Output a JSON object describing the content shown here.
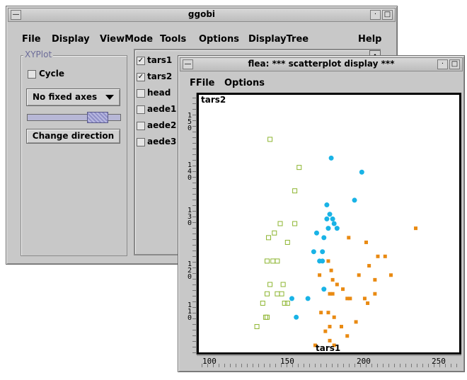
{
  "ggobi": {
    "title": "ggobi",
    "menus": [
      "File",
      "Display",
      "ViewMode",
      "Tools",
      "Options",
      "DisplayTree",
      "Help"
    ],
    "xyplot": {
      "group_label": "XYPlot",
      "cycle_label": "Cycle",
      "axes_select": "No fixed axes",
      "change_direction": "Change direction"
    },
    "variables": [
      {
        "name": "tars1",
        "checked": true
      },
      {
        "name": "tars2",
        "checked": true
      },
      {
        "name": "head",
        "checked": false
      },
      {
        "name": "aede1",
        "checked": false
      },
      {
        "name": "aede2",
        "checked": false
      },
      {
        "name": "aede3",
        "checked": false
      }
    ]
  },
  "scatter": {
    "title": "flea: *** scatterplot display ***",
    "menus": [
      "FFile",
      "Options"
    ],
    "xlabel": "tars1",
    "ylabel": "tars2",
    "ruler_x": [
      "100",
      "150",
      "200",
      "250"
    ],
    "ruler_y": [
      [
        "1",
        "5",
        "0"
      ],
      [
        "1",
        "4",
        "0"
      ],
      [
        "1",
        "3",
        "0"
      ],
      [
        "1",
        "2",
        "0"
      ],
      [
        "1",
        "1",
        "0"
      ]
    ],
    "colors": {
      "green": "#8db530",
      "cyan": "#19b3e6",
      "orange": "#e98a12"
    }
  },
  "chart_data": {
    "type": "scatter",
    "xlabel": "tars1",
    "ylabel": "tars2",
    "xlim": [
      96,
      265
    ],
    "ylim": [
      104,
      156
    ],
    "series": [
      {
        "marker": "open-square",
        "color": "#8db530",
        "points": [
          [
            140,
            148
          ],
          [
            160,
            142
          ],
          [
            157,
            137
          ],
          [
            147,
            130
          ],
          [
            143,
            128
          ],
          [
            157,
            130
          ],
          [
            139,
            127
          ],
          [
            152,
            126
          ],
          [
            138,
            122
          ],
          [
            142,
            122
          ],
          [
            145,
            122
          ],
          [
            140,
            117
          ],
          [
            149,
            117
          ],
          [
            138,
            115
          ],
          [
            145,
            115
          ],
          [
            148,
            115
          ],
          [
            135,
            113
          ],
          [
            150,
            113
          ],
          [
            137,
            110
          ],
          [
            152,
            113
          ],
          [
            138,
            110
          ],
          [
            131,
            108
          ]
        ]
      },
      {
        "marker": "dot",
        "color": "#19b3e6",
        "points": [
          [
            182,
            144
          ],
          [
            203,
            141
          ],
          [
            198,
            135
          ],
          [
            179,
            134
          ],
          [
            181,
            132
          ],
          [
            183,
            131
          ],
          [
            179,
            131
          ],
          [
            184,
            130
          ],
          [
            172,
            128
          ],
          [
            180,
            129
          ],
          [
            186,
            129
          ],
          [
            177,
            127
          ],
          [
            170,
            124
          ],
          [
            176,
            124
          ],
          [
            174,
            122
          ],
          [
            176,
            122
          ],
          [
            177,
            116
          ],
          [
            155,
            114
          ],
          [
            166,
            114
          ],
          [
            158,
            110
          ]
        ]
      },
      {
        "marker": "filled-square",
        "color": "#e98a12",
        "points": [
          [
            240,
            129
          ],
          [
            194,
            127
          ],
          [
            206,
            126
          ],
          [
            219,
            123
          ],
          [
            180,
            122
          ],
          [
            214,
            123
          ],
          [
            182,
            120
          ],
          [
            208,
            121
          ],
          [
            174,
            119
          ],
          [
            183,
            118
          ],
          [
            201,
            119
          ],
          [
            212,
            118
          ],
          [
            223,
            119
          ],
          [
            190,
            116
          ],
          [
            212,
            115
          ],
          [
            195,
            114
          ],
          [
            205,
            114
          ],
          [
            193,
            114
          ],
          [
            186,
            117
          ],
          [
            181,
            115
          ],
          [
            183,
            115
          ],
          [
            207,
            113
          ],
          [
            175,
            111
          ],
          [
            180,
            111
          ],
          [
            184,
            110
          ],
          [
            199,
            109
          ],
          [
            181,
            108
          ],
          [
            189,
            108
          ],
          [
            178,
            107
          ],
          [
            193,
            106
          ],
          [
            181,
            105
          ],
          [
            184,
            104
          ],
          [
            171,
            104
          ]
        ]
      }
    ]
  }
}
